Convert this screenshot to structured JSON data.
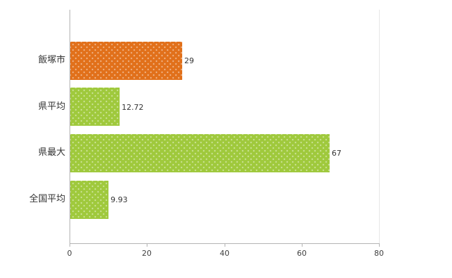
{
  "chart_data": {
    "type": "bar",
    "orientation": "horizontal",
    "title": "",
    "xlabel": "",
    "ylabel": "",
    "categories": [
      "飯塚市",
      "県平均",
      "県最大",
      "全国平均"
    ],
    "values": [
      29,
      12.72,
      67,
      9.93
    ],
    "value_labels": [
      "29",
      "12.72",
      "67",
      "9.93"
    ],
    "bar_colors": [
      "#e1701a",
      "#9fc93c",
      "#9fc93c",
      "#9fc93c"
    ],
    "xlim": [
      0,
      80
    ],
    "x_ticks": [
      0,
      20,
      40,
      60,
      80
    ],
    "x_tick_labels": [
      "0",
      "20",
      "40",
      "60",
      "80"
    ],
    "grid": "off",
    "legend": "none"
  },
  "colors": {
    "axis": "#b3b3b3",
    "plot_border": "#e6e6e6",
    "text": "#333333",
    "orange": "#e1701a",
    "green": "#9fc93c"
  }
}
